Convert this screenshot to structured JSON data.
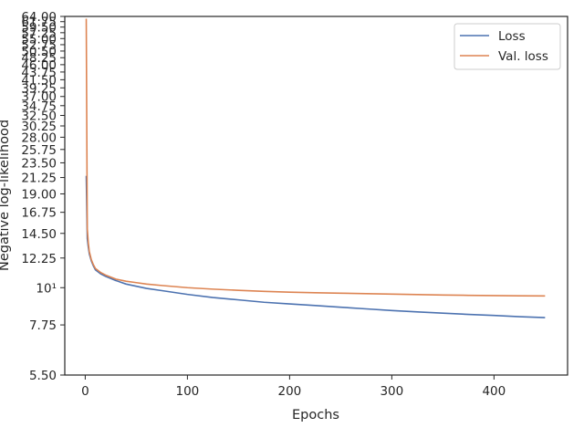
{
  "chart_data": {
    "type": "line",
    "xlabel": "Epochs",
    "ylabel": "Negative log-likelihood",
    "xlim": [
      -20,
      472
    ],
    "ylim": [
      5.5,
      64
    ],
    "yscale": "log",
    "legend_position": "top-right",
    "x_ticks": [
      0,
      100,
      200,
      300,
      400
    ],
    "y_ticks": [
      5.5,
      7.75,
      10,
      12.25,
      14.5,
      16.75,
      19.0,
      21.25,
      23.5,
      25.75,
      28.0,
      30.25,
      32.5,
      34.75,
      37.0,
      39.25,
      41.5,
      43.75,
      46.0,
      48.25,
      50.5,
      52.75,
      55.0,
      57.25,
      59.5,
      61.75,
      64.0
    ],
    "y_tick_labels": [
      "5.50",
      "7.75",
      "10¹",
      "12.25",
      "14.50",
      "16.75",
      "19.00",
      "21.25",
      "23.50",
      "25.75",
      "28.00",
      "30.25",
      "32.50",
      "34.75",
      "37.00",
      "39.25",
      "41.50",
      "43.75",
      "46.00",
      "48.25",
      "50.50",
      "52.75",
      "55.00",
      "57.25",
      "59.50",
      "61.75",
      "64.00"
    ],
    "series": [
      {
        "name": "Loss",
        "color": "#4c72b0",
        "x": [
          1,
          2,
          3,
          4,
          6,
          8,
          10,
          15,
          20,
          30,
          40,
          50,
          60,
          75,
          100,
          125,
          150,
          175,
          200,
          225,
          250,
          275,
          300,
          325,
          350,
          375,
          400,
          425,
          450
        ],
        "y": [
          21.5,
          14.0,
          13.2,
          12.6,
          12.0,
          11.6,
          11.3,
          11.0,
          10.8,
          10.5,
          10.25,
          10.1,
          9.95,
          9.8,
          9.55,
          9.35,
          9.2,
          9.05,
          8.95,
          8.85,
          8.75,
          8.65,
          8.55,
          8.47,
          8.4,
          8.33,
          8.27,
          8.2,
          8.15
        ]
      },
      {
        "name": "Val. loss",
        "color": "#dd8452",
        "x": [
          1,
          2,
          3,
          4,
          6,
          8,
          10,
          15,
          20,
          30,
          40,
          50,
          60,
          75,
          100,
          125,
          150,
          175,
          200,
          225,
          250,
          275,
          300,
          325,
          350,
          375,
          400,
          425,
          450
        ],
        "y": [
          63.0,
          15.0,
          13.6,
          12.8,
          12.1,
          11.7,
          11.4,
          11.1,
          10.9,
          10.6,
          10.45,
          10.35,
          10.25,
          10.15,
          10.0,
          9.9,
          9.82,
          9.75,
          9.7,
          9.66,
          9.63,
          9.6,
          9.57,
          9.54,
          9.51,
          9.49,
          9.47,
          9.46,
          9.45
        ]
      }
    ]
  }
}
